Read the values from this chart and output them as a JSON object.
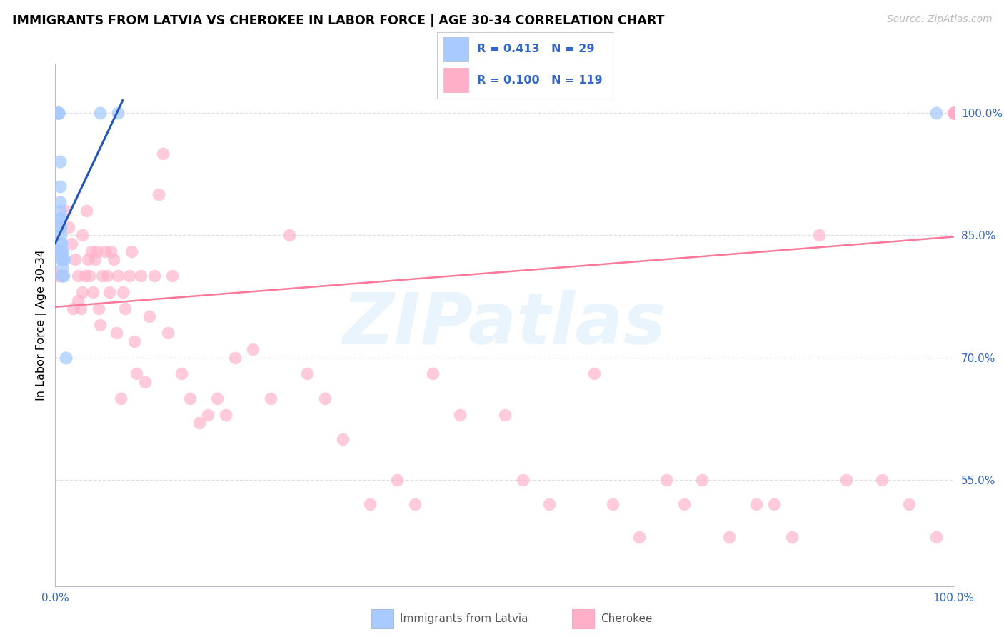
{
  "title": "IMMIGRANTS FROM LATVIA VS CHEROKEE IN LABOR FORCE | AGE 30-34 CORRELATION CHART",
  "source": "Source: ZipAtlas.com",
  "ylabel": "In Labor Force | Age 30-34",
  "blue_color": "#A8CAFF",
  "pink_color": "#FFB0C8",
  "blue_line_color": "#2255BB",
  "pink_line_color": "#FF7799",
  "axis_tick_color": "#3366CC",
  "grid_color": "#DDDDEE",
  "watermark_text": "ZIPatlas",
  "legend_R_blue": "0.413",
  "legend_N_blue": "29",
  "legend_R_pink": "0.100",
  "legend_N_pink": "119",
  "ytick_values": [
    0.55,
    0.7,
    0.85,
    1.0
  ],
  "ytick_labels": [
    "55.0%",
    "70.0%",
    "85.0%",
    "100.0%"
  ],
  "xlim": [
    0.0,
    1.0
  ],
  "ylim": [
    0.42,
    1.06
  ],
  "blue_line_x": [
    0.0,
    0.075
  ],
  "blue_line_y": [
    0.84,
    1.015
  ],
  "pink_line_x": [
    0.0,
    1.0
  ],
  "pink_line_y": [
    0.762,
    0.848
  ],
  "blue_x": [
    0.003,
    0.003,
    0.003,
    0.004,
    0.004,
    0.005,
    0.005,
    0.005,
    0.005,
    0.005,
    0.005,
    0.006,
    0.006,
    0.006,
    0.006,
    0.006,
    0.007,
    0.007,
    0.007,
    0.007,
    0.008,
    0.008,
    0.008,
    0.009,
    0.01,
    0.012,
    0.05,
    0.07,
    0.98
  ],
  "blue_y": [
    1.0,
    1.0,
    1.0,
    1.0,
    1.0,
    0.94,
    0.91,
    0.89,
    0.88,
    0.87,
    0.86,
    0.87,
    0.86,
    0.85,
    0.84,
    0.83,
    0.84,
    0.83,
    0.82,
    0.8,
    0.83,
    0.82,
    0.81,
    0.8,
    0.82,
    0.7,
    1.0,
    1.0,
    1.0
  ],
  "pink_x": [
    0.003,
    0.008,
    0.012,
    0.015,
    0.018,
    0.02,
    0.022,
    0.025,
    0.025,
    0.028,
    0.03,
    0.03,
    0.033,
    0.035,
    0.036,
    0.038,
    0.04,
    0.042,
    0.044,
    0.046,
    0.048,
    0.05,
    0.052,
    0.055,
    0.058,
    0.06,
    0.062,
    0.065,
    0.068,
    0.07,
    0.073,
    0.075,
    0.078,
    0.082,
    0.085,
    0.088,
    0.09,
    0.095,
    0.1,
    0.105,
    0.11,
    0.115,
    0.12,
    0.125,
    0.13,
    0.14,
    0.15,
    0.16,
    0.17,
    0.18,
    0.19,
    0.2,
    0.22,
    0.24,
    0.26,
    0.28,
    0.3,
    0.32,
    0.35,
    0.38,
    0.4,
    0.42,
    0.45,
    0.5,
    0.52,
    0.55,
    0.6,
    0.62,
    0.65,
    0.68,
    0.7,
    0.72,
    0.75,
    0.78,
    0.8,
    0.82,
    0.85,
    0.88,
    0.92,
    0.95,
    0.98,
    1.0,
    1.0,
    1.0,
    1.0,
    1.0,
    1.0,
    1.0,
    1.0,
    1.0,
    1.0,
    1.0,
    1.0,
    1.0,
    1.0,
    1.0,
    1.0,
    1.0,
    1.0,
    1.0,
    1.0,
    1.0,
    1.0,
    1.0,
    1.0,
    1.0,
    1.0,
    1.0,
    1.0,
    1.0,
    1.0,
    1.0,
    1.0,
    1.0,
    1.0
  ],
  "pink_y": [
    0.8,
    0.8,
    0.88,
    0.86,
    0.84,
    0.76,
    0.82,
    0.8,
    0.77,
    0.76,
    0.85,
    0.78,
    0.8,
    0.88,
    0.82,
    0.8,
    0.83,
    0.78,
    0.82,
    0.83,
    0.76,
    0.74,
    0.8,
    0.83,
    0.8,
    0.78,
    0.83,
    0.82,
    0.73,
    0.8,
    0.65,
    0.78,
    0.76,
    0.8,
    0.83,
    0.72,
    0.68,
    0.8,
    0.67,
    0.75,
    0.8,
    0.9,
    0.95,
    0.73,
    0.8,
    0.68,
    0.65,
    0.62,
    0.63,
    0.65,
    0.63,
    0.7,
    0.71,
    0.65,
    0.85,
    0.68,
    0.65,
    0.6,
    0.52,
    0.55,
    0.52,
    0.68,
    0.63,
    0.63,
    0.55,
    0.52,
    0.68,
    0.52,
    0.48,
    0.55,
    0.52,
    0.55,
    0.48,
    0.52,
    0.52,
    0.48,
    0.85,
    0.55,
    0.55,
    0.52,
    0.48,
    1.0,
    1.0,
    1.0,
    1.0,
    1.0,
    1.0,
    1.0,
    1.0,
    1.0,
    1.0,
    1.0,
    1.0,
    1.0,
    1.0,
    1.0,
    1.0,
    1.0,
    1.0,
    1.0,
    1.0,
    1.0,
    1.0,
    1.0,
    1.0,
    1.0,
    1.0,
    1.0,
    1.0,
    1.0,
    1.0,
    1.0,
    1.0,
    1.0,
    1.0
  ]
}
